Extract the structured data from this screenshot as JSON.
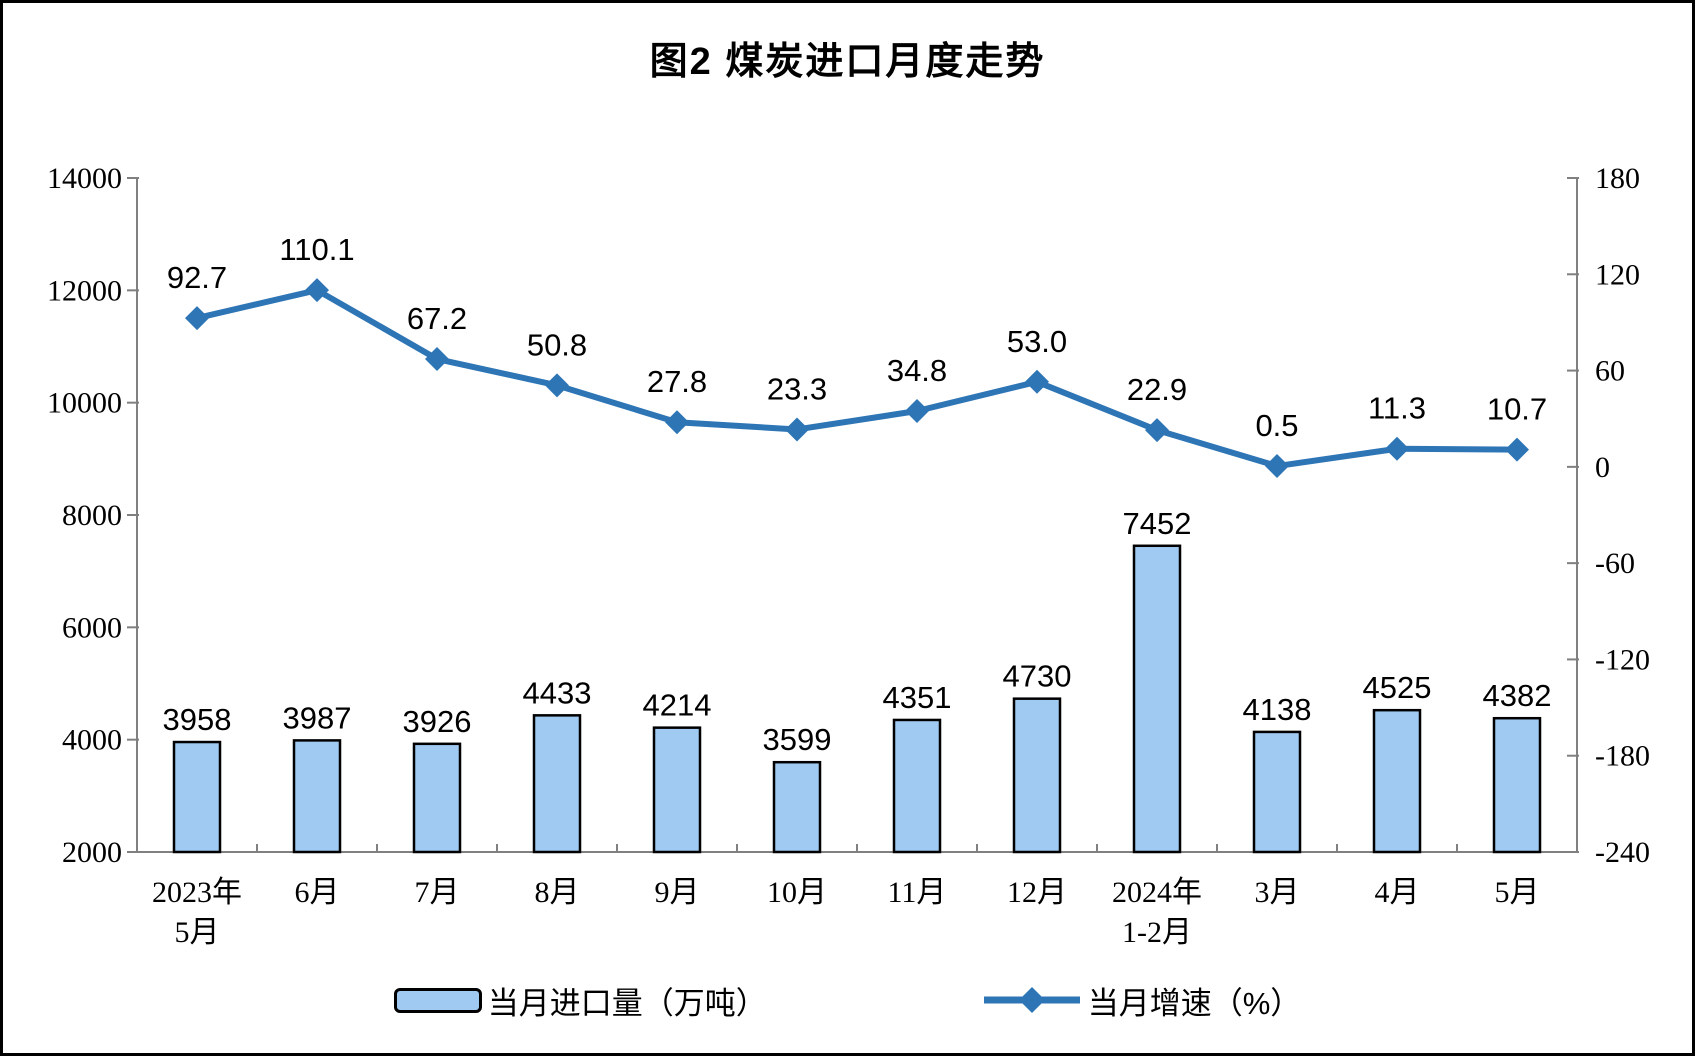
{
  "title": "图2 煤炭进口月度走势",
  "chart_data": {
    "type": "combo-bar-line",
    "categories": [
      [
        "2023年",
        "5月"
      ],
      [
        "6月"
      ],
      [
        "7月"
      ],
      [
        "8月"
      ],
      [
        "9月"
      ],
      [
        "10月"
      ],
      [
        "11月"
      ],
      [
        "12月"
      ],
      [
        "2024年",
        "1-2月"
      ],
      [
        "3月"
      ],
      [
        "4月"
      ],
      [
        "5月"
      ]
    ],
    "series": [
      {
        "name": "当月进口量（万吨）",
        "type": "bar",
        "axis": "left",
        "color": "#A0CAF1",
        "border_color": "#000000",
        "values": [
          3958,
          3987,
          3926,
          4433,
          4214,
          3599,
          4351,
          4730,
          7452,
          4138,
          4525,
          4382
        ]
      },
      {
        "name": "当月增速（%）",
        "type": "line",
        "axis": "right",
        "color": "#2E75B6",
        "marker": "diamond",
        "values": [
          92.7,
          110.1,
          67.2,
          50.8,
          27.8,
          23.3,
          34.8,
          53.0,
          22.9,
          0.5,
          11.3,
          10.7
        ]
      }
    ],
    "left_axis": {
      "min": 2000,
      "max": 14000,
      "step": 2000,
      "tick_labels": [
        "14000",
        "12000",
        "10000",
        "8000",
        "6000",
        "4000",
        "2000"
      ]
    },
    "right_axis": {
      "min": -240,
      "max": 180,
      "step": 60,
      "tick_labels": [
        "180",
        "120",
        "60",
        "0",
        "-60",
        "-120",
        "-180",
        "-240"
      ]
    },
    "grid": false,
    "legend_position": "bottom",
    "axis_color": "#808080",
    "text_color": "#000000"
  }
}
